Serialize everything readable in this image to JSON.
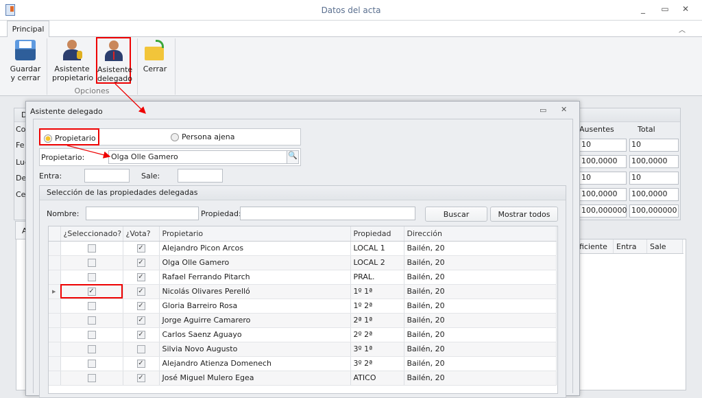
{
  "window": {
    "title": "Datos del acta",
    "controls": [
      "_",
      "▭",
      "✕"
    ]
  },
  "ribbon": {
    "tab": "Principal",
    "buttons": [
      {
        "label1": "Guardar",
        "label2": "y cerrar"
      },
      {
        "label1": "Asistente",
        "label2": "propietario"
      },
      {
        "label1": "Asistente",
        "label2": "delegado"
      },
      {
        "label1": "Cerrar",
        "label2": ""
      }
    ],
    "group_label": "Opciones"
  },
  "background": {
    "group_header": "D",
    "labels": [
      "Co",
      "Fe",
      "Lug",
      "De",
      "Cel"
    ],
    "col_headers": [
      "Ausentes",
      "Total"
    ],
    "values": [
      [
        "10",
        "10"
      ],
      [
        "100,0000",
        "100,0000"
      ],
      [
        "10",
        "10"
      ],
      [
        "100,0000",
        "100,0000"
      ],
      [
        "100,000000",
        "100,000000"
      ]
    ],
    "tab": "A",
    "grid_headers": [
      "ficiente",
      "Entra",
      "Sale"
    ]
  },
  "dialog": {
    "title": "Asistente delegado",
    "radio_propietario": "Propietario",
    "radio_persona": "Persona ajena",
    "radio_selected": "Propietario",
    "propietario_label": "Propietario:",
    "propietario_value": "Olga Olle Gamero",
    "entra_label": "Entra:",
    "sale_label": "Sale:",
    "entra_value": "",
    "sale_value": "",
    "group_title": "Selección de las propiedades delegadas",
    "nombre_label": "Nombre:",
    "propiedad_label": "Propiedad:",
    "nombre_value": "",
    "propiedad_value": "",
    "buscar": "Buscar",
    "mostrar_todos": "Mostrar todos",
    "grid": {
      "headers": [
        "¿Seleccionado?",
        "¿Vota?",
        "Propietario",
        "Propiedad",
        "Dirección"
      ],
      "rows": [
        {
          "sel": false,
          "vota": true,
          "propietario": "Alejandro Picon Arcos",
          "propiedad": "LOCAL 1",
          "direccion": "Bailén, 20"
        },
        {
          "sel": false,
          "vota": true,
          "propietario": "Olga Olle Gamero",
          "propiedad": "LOCAL 2",
          "direccion": "Bailén, 20"
        },
        {
          "sel": false,
          "vota": true,
          "propietario": "Rafael Ferrando Pitarch",
          "propiedad": "PRAL.",
          "direccion": "Bailén, 20"
        },
        {
          "sel": true,
          "vota": true,
          "propietario": "Nicolás Olivares Perelló",
          "propiedad": "1º 1ª",
          "direccion": "Bailén, 20",
          "current": true
        },
        {
          "sel": false,
          "vota": true,
          "propietario": "Gloria Barreiro Rosa",
          "propiedad": "1º 2ª",
          "direccion": "Bailén, 20"
        },
        {
          "sel": false,
          "vota": true,
          "propietario": "Jorge Aguirre Camarero",
          "propiedad": "2ª 1ª",
          "direccion": "Bailén, 20"
        },
        {
          "sel": false,
          "vota": true,
          "propietario": "Carlos Saenz Aguayo",
          "propiedad": "2º 2ª",
          "direccion": "Bailén, 20"
        },
        {
          "sel": false,
          "vota": false,
          "propietario": "Silvia Novo Augusto",
          "propiedad": "3º 1ª",
          "direccion": "Bailén, 20"
        },
        {
          "sel": false,
          "vota": true,
          "propietario": "Alejandro Atienza Domenech",
          "propiedad": "3º 2ª",
          "direccion": "Bailén, 20"
        },
        {
          "sel": false,
          "vota": true,
          "propietario": "José Miguel Mulero Egea",
          "propiedad": "ATICO",
          "direccion": "Bailén, 20"
        }
      ]
    }
  },
  "colors": {
    "highlight": "#e00000",
    "accent": "#5a6f8f"
  }
}
